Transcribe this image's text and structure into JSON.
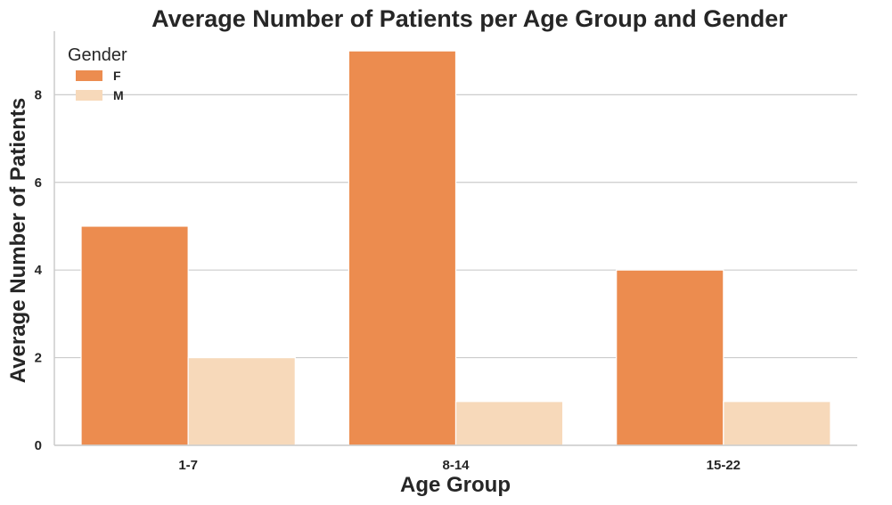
{
  "chart_data": {
    "type": "bar",
    "title": "Average Number of Patients per Age Group and Gender",
    "xlabel": "Age Group",
    "ylabel": "Average Number of Patients",
    "categories": [
      "1-7",
      "8-14",
      "15-22"
    ],
    "series": [
      {
        "name": "F",
        "values": [
          5,
          9,
          4
        ],
        "color": "#ec8c4f"
      },
      {
        "name": "M",
        "values": [
          2,
          1,
          1
        ],
        "color": "#f7d9ba"
      }
    ],
    "ylim": [
      0,
      9.45
    ],
    "yticks": [
      0,
      2,
      4,
      6,
      8
    ],
    "grid": "horizontal",
    "legend": {
      "title": "Gender",
      "placement": "top-left"
    }
  }
}
